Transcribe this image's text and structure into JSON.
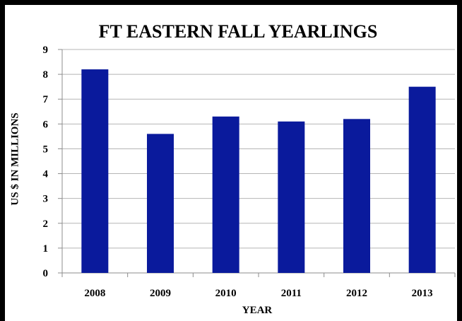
{
  "chart_data": {
    "type": "bar",
    "title": "FT EASTERN FALL YEARLINGS",
    "xlabel": "YEAR",
    "ylabel": "US $ IN MILLIONS",
    "categories": [
      "2008",
      "2009",
      "2010",
      "2011",
      "2012",
      "2013"
    ],
    "values": [
      8.2,
      5.6,
      6.3,
      6.1,
      6.2,
      7.5
    ],
    "ylim": [
      0,
      9
    ],
    "yticks": [
      "0",
      "1",
      "2",
      "3",
      "4",
      "5",
      "6",
      "7",
      "8",
      "9"
    ],
    "grid": true,
    "bar_color": "#0a1a9c"
  }
}
